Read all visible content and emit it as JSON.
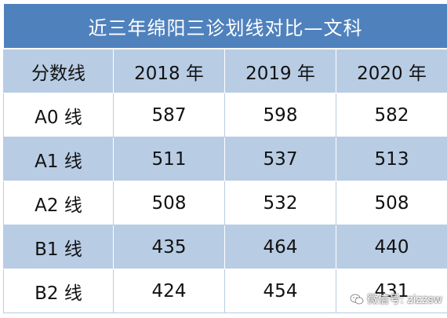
{
  "table": {
    "title": "近三年绵阳三诊划线对比—文科",
    "headers": [
      "分数线",
      "2018 年",
      "2019 年",
      "2020 年"
    ],
    "rows": [
      {
        "label": "A0 线",
        "values": [
          "587",
          "598",
          "582"
        ]
      },
      {
        "label": "A1 线",
        "values": [
          "511",
          "537",
          "513"
        ]
      },
      {
        "label": "A2 线",
        "values": [
          "508",
          "532",
          "508"
        ]
      },
      {
        "label": "B1 线",
        "values": [
          "435",
          "464",
          "440"
        ]
      },
      {
        "label": "B2 线",
        "values": [
          "424",
          "454",
          "431"
        ]
      }
    ]
  },
  "watermark": {
    "text": "微信号: zizzsw",
    "icon": "wechat-icon"
  },
  "colors": {
    "title_bg": "#4f81bd",
    "band": "#b8cce4",
    "title_text": "#ffffff"
  }
}
